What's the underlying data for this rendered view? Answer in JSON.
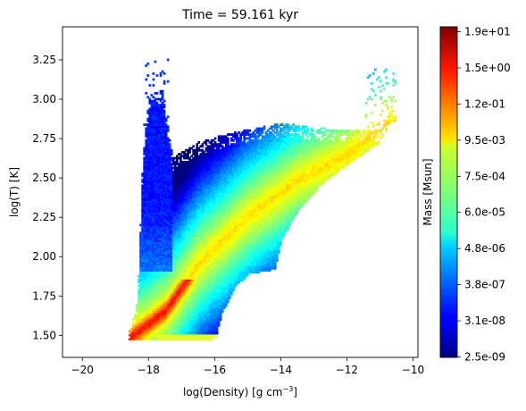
{
  "chart_data": {
    "type": "heatmap",
    "title": "Time = 59.161 kyr",
    "xlabel": "log(Density) [g cm",
    "xlabel_sup": "−3",
    "xlabel_close": "]",
    "ylabel": "log(T) [K]",
    "xlim": [
      -20.6,
      -9.85
    ],
    "ylim": [
      1.36,
      3.46
    ],
    "x_ticks": [
      -20,
      -18,
      -16,
      -14,
      -12,
      -10
    ],
    "x_tick_labels": [
      "−20",
      "−18",
      "−16",
      "−14",
      "−12",
      "−10"
    ],
    "y_ticks": [
      1.5,
      1.75,
      2.0,
      2.25,
      2.5,
      2.75,
      3.0,
      3.25
    ],
    "y_tick_labels": [
      "1.50",
      "1.75",
      "2.00",
      "2.25",
      "2.50",
      "2.75",
      "3.00",
      "3.25"
    ],
    "grid": false,
    "colorbar": {
      "label": "Mass [Msun]",
      "colormap": "jet",
      "scale": "log",
      "tick_labels": [
        "2.5e-09",
        "3.1e-08",
        "3.8e-07",
        "4.8e-06",
        "6.0e-05",
        "7.5e-04",
        "9.5e-03",
        "1.2e-01",
        "1.5e+00",
        "1.9e+01"
      ]
    }
  }
}
